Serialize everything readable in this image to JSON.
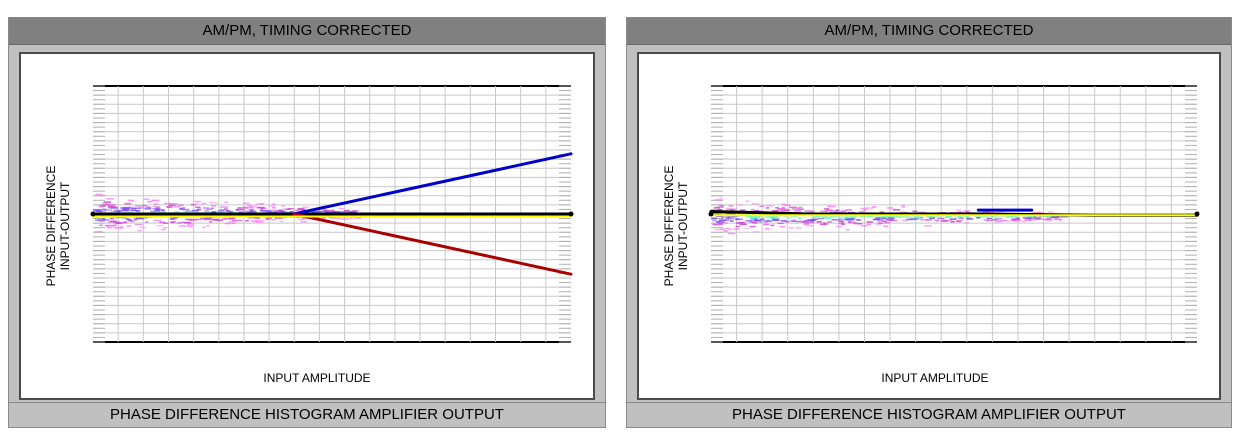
{
  "panels": [
    {
      "title": "AM/PM, TIMING CORRECTED",
      "footer": "PHASE DIFFERENCE HISTOGRAM AMPLIFIER OUTPUT",
      "chart_data": {
        "type": "line",
        "xlabel": "INPUT AMPLITUDE",
        "ylabel": [
          "PHASE DIFFERENCE",
          "INPUT-OUTPUT"
        ],
        "xlim": [
          0,
          1
        ],
        "ylim": [
          -1,
          1
        ],
        "grid": true,
        "histogram": {
          "x_extent": [
            0,
            0.55
          ],
          "center": 0.0,
          "spread": 0.18
        },
        "series": [
          {
            "color": "#000000",
            "points": [
              [
                0.0,
                0.0
              ],
              [
                0.3,
                0.0
              ],
              [
                1.0,
                0.0
              ]
            ]
          },
          {
            "color": "#0000cc",
            "points": [
              [
                0.42,
                0.0
              ],
              [
                1.0,
                0.47
              ]
            ]
          },
          {
            "color": "#aa0000",
            "points": [
              [
                0.42,
                0.0
              ],
              [
                1.0,
                -0.47
              ]
            ]
          },
          {
            "color": "#ffff00",
            "points": [
              [
                0.0,
                -0.02
              ],
              [
                1.0,
                -0.02
              ]
            ]
          }
        ]
      }
    },
    {
      "title": "AM/PM, TIMING CORRECTED",
      "footer": "PHASE DIFFERENCE HISTOGRAM AMPLIFIER OUTPUT",
      "chart_data": {
        "type": "line",
        "xlabel": "INPUT AMPLITUDE",
        "ylabel": [
          "PHASE DIFFERENCE",
          "INPUT-OUTPUT"
        ],
        "xlim": [
          0,
          1
        ],
        "ylim": [
          -1,
          1
        ],
        "grid": true,
        "histogram": {
          "x_extent": [
            0,
            0.72
          ],
          "center": -0.02,
          "spread": 0.16
        },
        "series": [
          {
            "color": "#000000",
            "points": [
              [
                0.0,
                0.02
              ],
              [
                0.2,
                0.0
              ],
              [
                0.55,
                0.0
              ],
              [
                0.79,
                -0.01
              ],
              [
                1.0,
                -0.01
              ]
            ]
          },
          {
            "color": "#0000cc",
            "points": [
              [
                0.55,
                0.03
              ],
              [
                0.66,
                0.03
              ]
            ]
          },
          {
            "color": "#ffff00",
            "points": [
              [
                0.0,
                -0.01
              ],
              [
                1.0,
                -0.01
              ]
            ]
          }
        ]
      }
    }
  ]
}
